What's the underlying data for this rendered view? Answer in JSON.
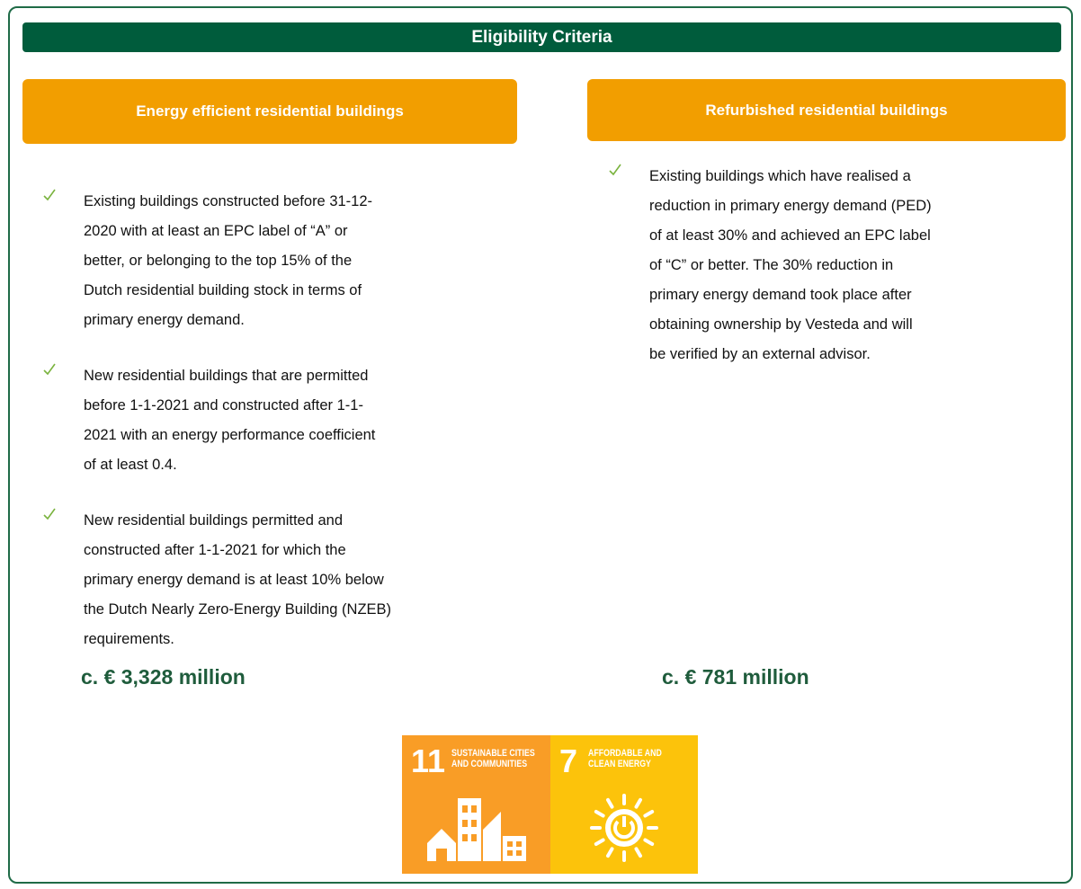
{
  "header": {
    "title": "Eligibility Criteria"
  },
  "columns": [
    {
      "heading": "Energy efficient residential buildings",
      "bullets": [
        [
          "Existing buildings constructed before 31-12-",
          "2020 with at least an EPC label of “A” or",
          "better, or belonging to the top 15% of the",
          "Dutch residential building stock in terms of",
          "primary energy demand."
        ],
        [
          "New residential buildings that are permitted",
          "before 1-1-2021 and constructed after 1-1-",
          "2021 with an energy performance coefficient",
          "of at least 0.4."
        ],
        [
          "New residential buildings permitted and",
          "constructed after 1-1-2021 for which the",
          "primary energy demand is at least 10% below",
          "the Dutch Nearly Zero-Energy Building (NZEB)",
          "requirements."
        ]
      ],
      "amount": "c. € 3,328 million"
    },
    {
      "heading": "Refurbished residential buildings",
      "bullets": [
        [
          "Existing buildings which have realised a",
          "reduction in primary energy demand (PED)",
          "of at least 30% and achieved an EPC label",
          "of “C” or better. The 30% reduction in",
          "primary energy demand took place after",
          "obtaining ownership by Vesteda and will",
          "be verified by an external advisor."
        ]
      ],
      "amount": "c. € 781 million"
    }
  ],
  "sdgs": [
    {
      "number": "11",
      "lines": [
        "SUSTAINABLE CITIES",
        "AND COMMUNITIES"
      ]
    },
    {
      "number": "7",
      "lines": [
        "AFFORDABLE AND",
        "CLEAN ENERGY"
      ]
    }
  ]
}
